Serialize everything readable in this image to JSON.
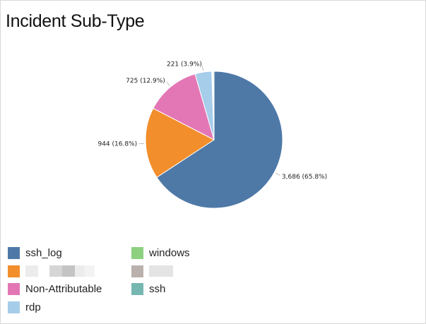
{
  "panel": {
    "title": "Incident Sub-Type"
  },
  "chart_data": {
    "type": "pie",
    "title": "Incident Sub-Type",
    "slices": [
      {
        "name": "ssh_log",
        "value": 3686,
        "label": "3,686 (65.8%)",
        "color": "#4e79a7"
      },
      {
        "name": "",
        "value": 944,
        "label": "944 (16.8%)",
        "color": "#f28e2b"
      },
      {
        "name": "Non-Attributable",
        "value": 725,
        "label": "725 (12.9%)",
        "color": "#e377b5"
      },
      {
        "name": "rdp",
        "value": 221,
        "label": "221 (3.9%)",
        "color": "#a6cdea"
      },
      {
        "name": "ssh",
        "value": 10,
        "label": "",
        "color": "#76b7b2"
      },
      {
        "name": "",
        "value": 8,
        "label": "",
        "color": "#bab0ac"
      },
      {
        "name": "windows",
        "value": 12,
        "label": "",
        "color": "#8dd07f"
      }
    ],
    "legend_position": "bottom-left"
  },
  "legend": [
    {
      "name": "ssh_log",
      "color": "#4e79a7",
      "redacted": false
    },
    {
      "name": "windows",
      "color": "#8dd07f",
      "redacted": false
    },
    {
      "name": "",
      "color": "#f28e2b",
      "redacted": true
    },
    {
      "name": "",
      "color": "#bab0ac",
      "redacted": true
    },
    {
      "name": "Non-Attributable",
      "color": "#e377b5",
      "redacted": false
    },
    {
      "name": "ssh",
      "color": "#76b7b2",
      "redacted": false
    },
    {
      "name": "rdp",
      "color": "#a6cdea",
      "redacted": false
    }
  ]
}
